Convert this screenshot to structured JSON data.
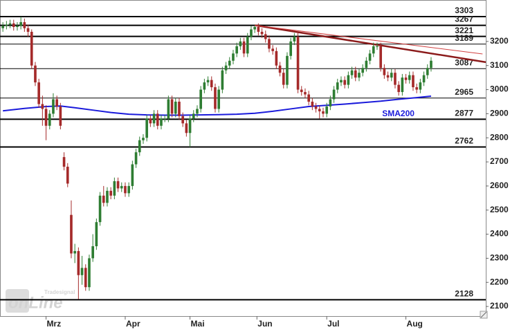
{
  "chart_data": {
    "type": "candlestick",
    "watermark": {
      "brand": "Tradesignal",
      "text": "onLine"
    },
    "xlim": [
      -0.8,
      134.2
    ],
    "xticks": [
      {
        "value": 12,
        "label": "Mrz"
      },
      {
        "value": 34,
        "label": "Apr"
      },
      {
        "value": 52,
        "label": "Mai"
      },
      {
        "value": 70.6,
        "label": "Jun"
      },
      {
        "value": 90,
        "label": "Jul"
      },
      {
        "value": 112,
        "label": "Aug"
      }
    ],
    "ylim": [
      2060,
      3372
    ],
    "yticks": [
      2100,
      2200,
      2300,
      2400,
      2500,
      2600,
      2700,
      2800,
      2900,
      3000,
      3100,
      3200
    ],
    "up_color": "#2e7d32",
    "down_color": "#a52a2a",
    "open": [
      3255,
      3265,
      3270,
      3275,
      3260,
      3265,
      3280,
      3255,
      3240,
      3100,
      3030,
      2940,
      2920,
      2850,
      2900,
      2960,
      2930,
      2720,
      2680,
      2480,
      2320,
      2330,
      2230,
      2260,
      2180,
      2300,
      2350,
      2450,
      2560,
      2530,
      2580,
      2560,
      2620,
      2590,
      2600,
      2570,
      2600,
      2690,
      2740,
      2790,
      2800,
      2880,
      2860,
      2900,
      2850,
      2880,
      2880,
      2960,
      2900,
      2950,
      2890,
      2860,
      2820,
      2880,
      2900,
      2920,
      3000,
      3030,
      3040,
      3010,
      2920,
      3000,
      3080,
      3100,
      3120,
      3150,
      3180,
      3200,
      3150,
      3220,
      3250,
      3260,
      3240,
      3230,
      3210,
      3170,
      3160,
      3100,
      3070,
      3020,
      3140,
      3200,
      3220,
      3000,
      2990,
      2980,
      2950,
      2930,
      2920,
      2910,
      2900,
      2930,
      2960,
      3000,
      3030,
      3040,
      3020,
      3060,
      3080,
      3050,
      3070,
      3090,
      3120,
      3150,
      3180,
      3180,
      3090,
      3060,
      3050,
      3070,
      3020,
      2990,
      3050,
      3040,
      3060,
      3010,
      3000,
      3030,
      3060,
      3090
    ],
    "high": [
      3280,
      3285,
      3290,
      3290,
      3280,
      3303,
      3295,
      3270,
      3250,
      3115,
      3045,
      2975,
      2935,
      2915,
      2985,
      2975,
      2945,
      2740,
      2695,
      2540,
      2360,
      2345,
      2310,
      2275,
      2315,
      2400,
      2465,
      2575,
      2600,
      2595,
      2595,
      2635,
      2635,
      2615,
      2615,
      2615,
      2705,
      2755,
      2805,
      2815,
      2895,
      2895,
      2915,
      2915,
      2895,
      2895,
      2975,
      2975,
      2965,
      2965,
      2905,
      2875,
      2895,
      2915,
      2935,
      3015,
      3045,
      3055,
      3055,
      3025,
      3015,
      3095,
      3115,
      3135,
      3165,
      3195,
      3215,
      3215,
      3235,
      3265,
      3267,
      3275,
      3255,
      3245,
      3225,
      3185,
      3175,
      3115,
      3085,
      3155,
      3215,
      3235,
      3235,
      3015,
      3005,
      2995,
      2965,
      2945,
      2935,
      2925,
      2945,
      2975,
      3015,
      3045,
      3055,
      3055,
      3075,
      3095,
      3095,
      3085,
      3105,
      3135,
      3165,
      3195,
      3195,
      3195,
      3105,
      3075,
      3085,
      3085,
      3035,
      3065,
      3065,
      3075,
      3075,
      3025,
      3045,
      3075,
      3105,
      3135
    ],
    "low": [
      3240,
      3250,
      3255,
      3245,
      3245,
      3250,
      3240,
      3220,
      3085,
      3015,
      2925,
      2850,
      2790,
      2835,
      2885,
      2915,
      2835,
      2665,
      2595,
      2300,
      2280,
      2130,
      2190,
      2165,
      2165,
      2285,
      2335,
      2435,
      2515,
      2515,
      2545,
      2545,
      2575,
      2575,
      2555,
      2555,
      2585,
      2675,
      2725,
      2775,
      2785,
      2845,
      2845,
      2835,
      2835,
      2865,
      2865,
      2885,
      2885,
      2875,
      2845,
      2805,
      2762,
      2865,
      2885,
      2905,
      2985,
      3015,
      2995,
      2905,
      2905,
      2985,
      3065,
      3085,
      3105,
      3135,
      3165,
      3135,
      3135,
      3205,
      3235,
      3225,
      3215,
      3195,
      3155,
      3145,
      3085,
      3055,
      3005,
      3005,
      3125,
      3185,
      2985,
      2975,
      2965,
      2935,
      2915,
      2905,
      2880,
      2885,
      2885,
      2915,
      2945,
      2985,
      3015,
      3005,
      3005,
      3045,
      3035,
      3035,
      3055,
      3075,
      3105,
      3135,
      3165,
      3075,
      3045,
      3035,
      3035,
      3005,
      2975,
      2975,
      3025,
      3025,
      2995,
      2985,
      2985,
      3015,
      3045,
      3075
    ],
    "close": [
      3265,
      3270,
      3275,
      3260,
      3265,
      3280,
      3255,
      3240,
      3100,
      3030,
      2940,
      2920,
      2850,
      2900,
      2960,
      2930,
      2850,
      2680,
      2610,
      2320,
      2330,
      2230,
      2260,
      2180,
      2300,
      2350,
      2450,
      2560,
      2530,
      2580,
      2560,
      2620,
      2590,
      2600,
      2570,
      2600,
      2690,
      2740,
      2790,
      2800,
      2880,
      2860,
      2900,
      2850,
      2880,
      2880,
      2960,
      2900,
      2950,
      2890,
      2860,
      2820,
      2880,
      2900,
      2920,
      3000,
      3030,
      3040,
      3010,
      2920,
      3000,
      3080,
      3100,
      3120,
      3150,
      3180,
      3200,
      3150,
      3220,
      3250,
      3260,
      3240,
      3230,
      3210,
      3170,
      3160,
      3100,
      3070,
      3020,
      3140,
      3200,
      3220,
      3000,
      2990,
      2980,
      2950,
      2930,
      2920,
      2910,
      2900,
      2930,
      2960,
      3000,
      3030,
      3040,
      3020,
      3060,
      3080,
      3050,
      3070,
      3090,
      3120,
      3150,
      3180,
      3180,
      3090,
      3060,
      3050,
      3070,
      3020,
      2990,
      3050,
      3040,
      3060,
      3010,
      3000,
      3030,
      3060,
      3090,
      3120
    ],
    "lines": [
      {
        "name": "SMA200",
        "color": "#1a1adb",
        "x": [
          0,
          6,
          12,
          16,
          20,
          25,
          30,
          35,
          40,
          45,
          50,
          55,
          60,
          65,
          70,
          75,
          80,
          85,
          90,
          95,
          100,
          105,
          110,
          115,
          119
        ],
        "values": [
          2912,
          2922,
          2930,
          2932,
          2925,
          2915,
          2905,
          2898,
          2895,
          2894,
          2894,
          2895,
          2896,
          2898,
          2902,
          2910,
          2920,
          2930,
          2935,
          2940,
          2946,
          2952,
          2960,
          2967,
          2973
        ]
      }
    ],
    "trendlines": [
      {
        "color": "#8b1a1a",
        "width": 2.5,
        "x": [
          70,
          134.2
        ],
        "values": [
          3267,
          3114
        ]
      },
      {
        "color": "#d04040",
        "width": 1,
        "x": [
          70,
          133.3
        ],
        "values": [
          3267,
          3148
        ]
      }
    ],
    "levels": [
      {
        "value": 3303,
        "bold": true
      },
      {
        "value": 3267,
        "bold": true
      },
      {
        "value": 3221,
        "bold": true
      },
      {
        "value": 3189,
        "bold": false
      },
      {
        "value": 3087,
        "bold": false
      },
      {
        "value": 2965,
        "bold": false
      },
      {
        "value": 2877,
        "bold": true
      },
      {
        "value": 2762,
        "bold": true
      },
      {
        "value": 2128,
        "bold": true
      }
    ]
  }
}
